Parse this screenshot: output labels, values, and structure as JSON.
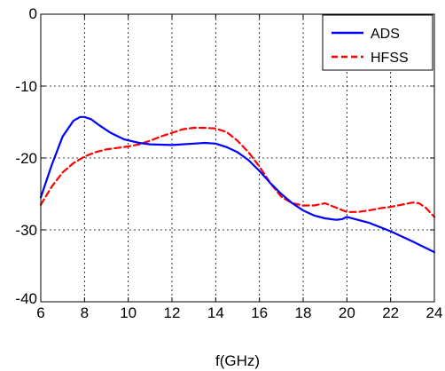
{
  "chart_data": {
    "type": "line",
    "title": "",
    "xlabel": "f(GHz)",
    "ylabel": "",
    "xlim": [
      6,
      24
    ],
    "ylim": [
      -40,
      0
    ],
    "xticks": [
      6,
      8,
      10,
      12,
      14,
      16,
      18,
      20,
      22,
      24
    ],
    "yticks": [
      0,
      -10,
      -20,
      -30,
      -40
    ],
    "xtick_labels": [
      "6",
      "8",
      "10",
      "12",
      "14",
      "16",
      "18",
      "20",
      "22",
      "24"
    ],
    "ytick_labels": [
      "0",
      "-10",
      "-20",
      "-30",
      "-40"
    ],
    "grid": true,
    "legend_position": "top-right",
    "series": [
      {
        "name": "ADS",
        "color": "#0000ff",
        "style": "solid",
        "x": [
          6,
          6.5,
          7,
          7.5,
          7.8,
          8,
          8.3,
          8.7,
          9.2,
          9.8,
          10.5,
          11,
          12,
          13,
          13.5,
          14,
          14.5,
          15,
          15.5,
          16,
          16.5,
          17,
          17.5,
          18,
          18.5,
          19,
          19.5,
          19.8,
          20,
          21,
          22,
          23,
          24
        ],
        "y": [
          -25.5,
          -21,
          -17,
          -14.8,
          -14.3,
          -14.3,
          -14.6,
          -15.5,
          -16.5,
          -17.4,
          -17.9,
          -18.1,
          -18.2,
          -18.0,
          -17.9,
          -18.0,
          -18.5,
          -19.2,
          -20.3,
          -21.8,
          -23.5,
          -25.0,
          -26.3,
          -27.3,
          -28.0,
          -28.4,
          -28.6,
          -28.5,
          -28.2,
          -29.0,
          -30.2,
          -31.6,
          -33.1
        ]
      },
      {
        "name": "HFSS",
        "color": "#ff0000",
        "style": "dashed",
        "x": [
          6,
          6.5,
          7,
          7.5,
          8,
          8.5,
          9,
          9.5,
          10,
          10.5,
          11,
          11.5,
          12,
          12.5,
          13,
          13.5,
          14,
          14.5,
          15,
          15.5,
          16,
          16.5,
          17,
          17.5,
          18,
          18.5,
          19,
          19.5,
          20,
          20.5,
          21,
          21.5,
          22,
          22.5,
          23,
          23.3,
          23.6,
          24
        ],
        "y": [
          -26.5,
          -24.0,
          -22.0,
          -20.7,
          -19.8,
          -19.2,
          -18.8,
          -18.6,
          -18.4,
          -18.1,
          -17.6,
          -17.0,
          -16.5,
          -16.0,
          -15.8,
          -15.8,
          -15.9,
          -16.4,
          -17.6,
          -19.2,
          -21.2,
          -23.5,
          -25.4,
          -26.3,
          -26.6,
          -26.6,
          -26.3,
          -26.9,
          -27.5,
          -27.5,
          -27.3,
          -27.0,
          -26.8,
          -26.5,
          -26.2,
          -26.3,
          -26.9,
          -28.2
        ]
      }
    ]
  }
}
